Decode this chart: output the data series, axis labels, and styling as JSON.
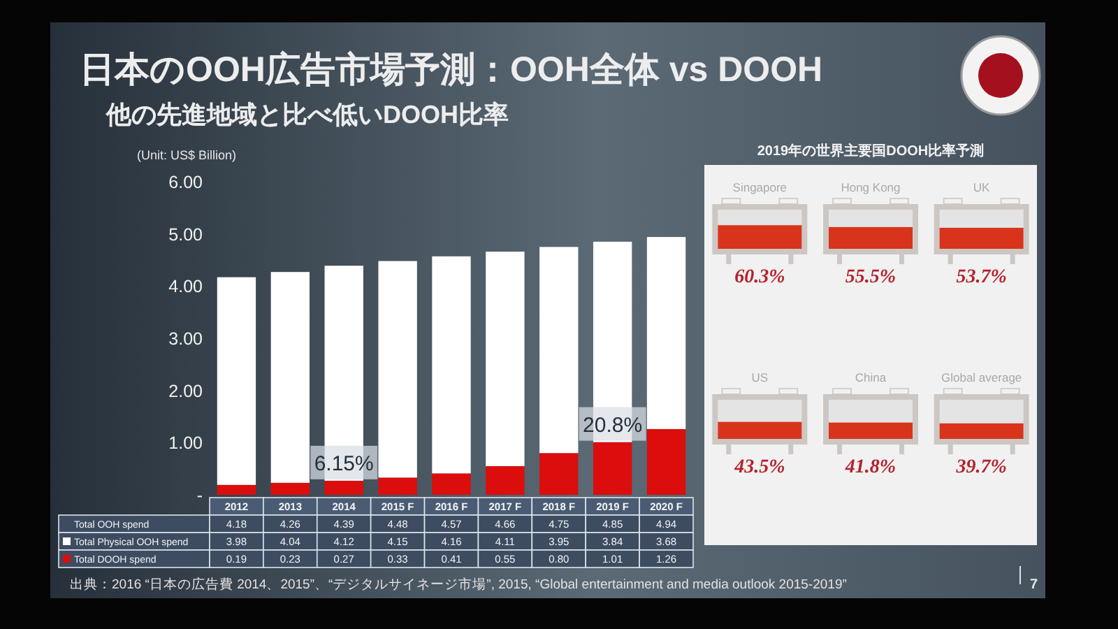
{
  "chart_data": [
    {
      "type": "bar",
      "stacked": true,
      "title": "日本のOOH広告市場予測：OOH全体 vs DOOH",
      "subtitle": "他の先進地域と比べ低いDOOH比率",
      "ylabel": "(Unit: US$ Billion)",
      "categories": [
        "2012",
        "2013",
        "2014",
        "2015 F",
        "2016 F",
        "2017 F",
        "2018 F",
        "2019 F",
        "2020 F"
      ],
      "series": [
        {
          "name": "Total DOOH spend",
          "color": "#dc0d0d",
          "values": [
            0.19,
            0.23,
            0.27,
            0.33,
            0.41,
            0.55,
            0.8,
            1.01,
            1.26
          ],
          "value_labels": [
            "0.19",
            "0.23",
            "0.27",
            "0.33",
            "0.41",
            "0.55",
            "0.80",
            "1.01",
            "1.26"
          ]
        },
        {
          "name": "Total Physical OOH spend",
          "color": "#ffffff",
          "values": [
            3.98,
            4.04,
            4.12,
            4.15,
            4.16,
            4.11,
            3.95,
            3.84,
            3.68
          ],
          "value_labels": [
            "3.98",
            "4.04",
            "4.12",
            "4.15",
            "4.16",
            "4.11",
            "3.95",
            "3.84",
            "3.68"
          ]
        }
      ],
      "totals": [
        "4.18",
        "4.26",
        "4.39",
        "4.48",
        "4.57",
        "4.66",
        "4.75",
        "4.85",
        "4.94"
      ],
      "ylim": [
        0,
        6
      ],
      "yticks": [
        {
          "value": 0,
          "label": "-"
        },
        {
          "value": 1,
          "label": "1.00"
        },
        {
          "value": 2,
          "label": "2.00"
        },
        {
          "value": 3,
          "label": "3.00"
        },
        {
          "value": 4,
          "label": "4.00"
        },
        {
          "value": 5,
          "label": "5.00"
        },
        {
          "value": 6,
          "label": "6.00"
        }
      ],
      "legend": "bottom",
      "annotations": [
        {
          "text": "6.15%",
          "x": "2014",
          "y": 0.27
        },
        {
          "text": "20.8%",
          "x": "2019 F",
          "y": 1.01
        },
        "Total OOH spend",
        "出典：2016 “日本の広告費 2014、2015”、“デジタルサイネージ市場”, 2015, “Global entertainment and media outlook 2015-2019”",
        "7"
      ]
    },
    {
      "type": "other",
      "title": "2019年の世界主要国DOOH比率予測",
      "categories": [
        "Singapore",
        "Hong Kong",
        "UK",
        "US",
        "China",
        "Global average"
      ],
      "values": [
        60.3,
        55.5,
        53.7,
        43.5,
        41.8,
        39.7
      ],
      "value_labels": [
        "60.3%",
        "55.5%",
        "53.7%",
        "43.5%",
        "41.8%",
        "39.7%"
      ]
    }
  ]
}
